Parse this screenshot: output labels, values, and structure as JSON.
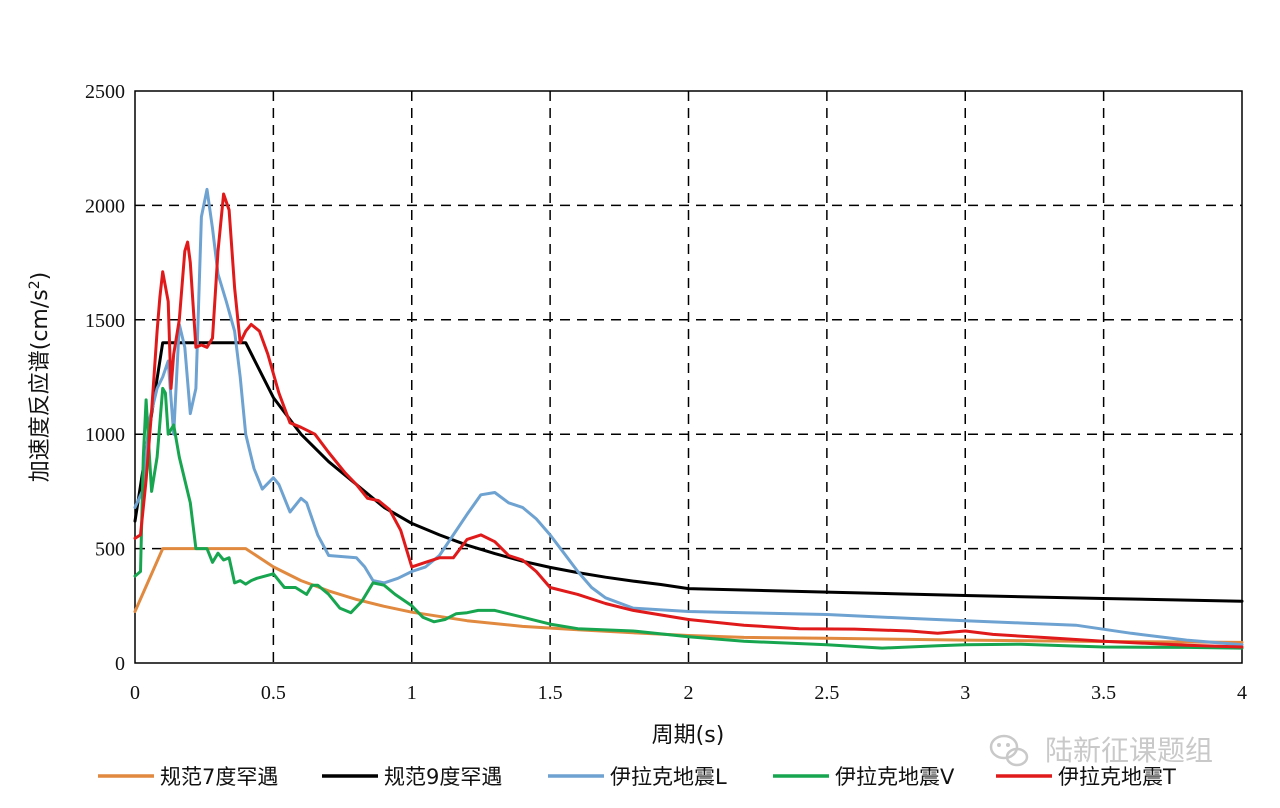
{
  "chart_data": {
    "type": "line",
    "title": "",
    "xlabel": "周期(s)",
    "ylabel_main": "加速度反应谱(cm/s",
    "ylabel_sup": "2",
    "ylabel_end": ")",
    "xlim": [
      0,
      4
    ],
    "ylim": [
      0,
      2500
    ],
    "x_ticks": [
      "0",
      "0.5",
      "1",
      "1.5",
      "2",
      "2.5",
      "3",
      "3.5",
      "4"
    ],
    "y_ticks": [
      "0",
      "500",
      "1000",
      "1500",
      "2000",
      "2500"
    ],
    "grid": "dashed",
    "legend_position": "bottom",
    "series": [
      {
        "name": "规范7度罕遇",
        "color": "#e0893f",
        "points": [
          [
            0,
            225
          ],
          [
            0.1,
            500
          ],
          [
            0.4,
            500
          ],
          [
            0.5,
            420
          ],
          [
            0.6,
            360
          ],
          [
            0.7,
            315
          ],
          [
            0.8,
            278
          ],
          [
            0.9,
            248
          ],
          [
            1.0,
            222
          ],
          [
            1.2,
            185
          ],
          [
            1.4,
            160
          ],
          [
            1.6,
            145
          ],
          [
            1.8,
            132
          ],
          [
            2.0,
            120
          ],
          [
            2.2,
            112
          ],
          [
            2.5,
            108
          ],
          [
            3.0,
            100
          ],
          [
            3.5,
            94
          ],
          [
            4.0,
            90
          ]
        ]
      },
      {
        "name": "规范9度罕遇",
        "color": "#000000",
        "points": [
          [
            0,
            620
          ],
          [
            0.1,
            1400
          ],
          [
            0.4,
            1400
          ],
          [
            0.5,
            1160
          ],
          [
            0.6,
            1000
          ],
          [
            0.7,
            880
          ],
          [
            0.8,
            780
          ],
          [
            0.9,
            680
          ],
          [
            1.0,
            610
          ],
          [
            1.1,
            560
          ],
          [
            1.2,
            515
          ],
          [
            1.3,
            478
          ],
          [
            1.4,
            445
          ],
          [
            1.5,
            418
          ],
          [
            1.6,
            395
          ],
          [
            1.7,
            375
          ],
          [
            1.8,
            358
          ],
          [
            1.9,
            343
          ],
          [
            2.0,
            325
          ],
          [
            2.5,
            310
          ],
          [
            3.0,
            295
          ],
          [
            3.5,
            282
          ],
          [
            4.0,
            270
          ]
        ]
      },
      {
        "name": "伊拉克地震L",
        "color": "#6ea2d1",
        "points": [
          [
            0,
            680
          ],
          [
            0.03,
            760
          ],
          [
            0.05,
            1050
          ],
          [
            0.08,
            1200
          ],
          [
            0.1,
            1250
          ],
          [
            0.12,
            1320
          ],
          [
            0.14,
            1000
          ],
          [
            0.16,
            1480
          ],
          [
            0.18,
            1380
          ],
          [
            0.2,
            1090
          ],
          [
            0.22,
            1200
          ],
          [
            0.24,
            1950
          ],
          [
            0.26,
            2070
          ],
          [
            0.28,
            1900
          ],
          [
            0.3,
            1700
          ],
          [
            0.33,
            1580
          ],
          [
            0.36,
            1450
          ],
          [
            0.38,
            1250
          ],
          [
            0.4,
            1000
          ],
          [
            0.43,
            850
          ],
          [
            0.46,
            760
          ],
          [
            0.5,
            810
          ],
          [
            0.52,
            780
          ],
          [
            0.56,
            660
          ],
          [
            0.6,
            720
          ],
          [
            0.62,
            700
          ],
          [
            0.66,
            560
          ],
          [
            0.7,
            470
          ],
          [
            0.75,
            465
          ],
          [
            0.8,
            460
          ],
          [
            0.83,
            420
          ],
          [
            0.86,
            360
          ],
          [
            0.9,
            350
          ],
          [
            0.95,
            370
          ],
          [
            1.0,
            400
          ],
          [
            1.05,
            420
          ],
          [
            1.1,
            470
          ],
          [
            1.15,
            560
          ],
          [
            1.2,
            650
          ],
          [
            1.25,
            735
          ],
          [
            1.3,
            745
          ],
          [
            1.35,
            700
          ],
          [
            1.4,
            680
          ],
          [
            1.45,
            630
          ],
          [
            1.5,
            560
          ],
          [
            1.55,
            480
          ],
          [
            1.6,
            400
          ],
          [
            1.65,
            330
          ],
          [
            1.7,
            285
          ],
          [
            1.8,
            240
          ],
          [
            2.0,
            225
          ],
          [
            2.2,
            220
          ],
          [
            2.5,
            212
          ],
          [
            2.8,
            195
          ],
          [
            3.0,
            185
          ],
          [
            3.2,
            175
          ],
          [
            3.4,
            165
          ],
          [
            3.6,
            130
          ],
          [
            3.8,
            100
          ],
          [
            4.0,
            80
          ]
        ]
      },
      {
        "name": "伊拉克地震V",
        "color": "#17a550",
        "points": [
          [
            0,
            380
          ],
          [
            0.02,
            400
          ],
          [
            0.03,
            900
          ],
          [
            0.04,
            1150
          ],
          [
            0.05,
            950
          ],
          [
            0.06,
            750
          ],
          [
            0.08,
            900
          ],
          [
            0.1,
            1200
          ],
          [
            0.11,
            1180
          ],
          [
            0.12,
            1000
          ],
          [
            0.14,
            1040
          ],
          [
            0.16,
            900
          ],
          [
            0.18,
            800
          ],
          [
            0.2,
            700
          ],
          [
            0.22,
            500
          ],
          [
            0.24,
            500
          ],
          [
            0.26,
            500
          ],
          [
            0.28,
            440
          ],
          [
            0.3,
            480
          ],
          [
            0.32,
            450
          ],
          [
            0.34,
            460
          ],
          [
            0.36,
            350
          ],
          [
            0.38,
            360
          ],
          [
            0.4,
            345
          ],
          [
            0.42,
            360
          ],
          [
            0.44,
            370
          ],
          [
            0.5,
            390
          ],
          [
            0.54,
            330
          ],
          [
            0.58,
            330
          ],
          [
            0.62,
            300
          ],
          [
            0.64,
            340
          ],
          [
            0.66,
            340
          ],
          [
            0.7,
            300
          ],
          [
            0.74,
            240
          ],
          [
            0.78,
            220
          ],
          [
            0.82,
            270
          ],
          [
            0.86,
            350
          ],
          [
            0.9,
            340
          ],
          [
            0.94,
            300
          ],
          [
            1.0,
            250
          ],
          [
            1.04,
            200
          ],
          [
            1.08,
            180
          ],
          [
            1.12,
            190
          ],
          [
            1.16,
            215
          ],
          [
            1.2,
            220
          ],
          [
            1.24,
            230
          ],
          [
            1.3,
            230
          ],
          [
            1.4,
            200
          ],
          [
            1.5,
            170
          ],
          [
            1.6,
            150
          ],
          [
            1.8,
            140
          ],
          [
            2.0,
            115
          ],
          [
            2.2,
            95
          ],
          [
            2.5,
            80
          ],
          [
            2.7,
            65
          ],
          [
            2.9,
            75
          ],
          [
            3.0,
            80
          ],
          [
            3.2,
            82
          ],
          [
            3.5,
            70
          ],
          [
            3.8,
            68
          ],
          [
            4.0,
            65
          ]
        ]
      },
      {
        "name": "伊拉克地震T",
        "color": "#e01a1a",
        "points": [
          [
            0,
            545
          ],
          [
            0.02,
            560
          ],
          [
            0.04,
            800
          ],
          [
            0.06,
            1100
          ],
          [
            0.08,
            1450
          ],
          [
            0.09,
            1600
          ],
          [
            0.1,
            1710
          ],
          [
            0.12,
            1580
          ],
          [
            0.13,
            1200
          ],
          [
            0.14,
            1350
          ],
          [
            0.16,
            1500
          ],
          [
            0.18,
            1800
          ],
          [
            0.19,
            1840
          ],
          [
            0.2,
            1750
          ],
          [
            0.22,
            1380
          ],
          [
            0.24,
            1390
          ],
          [
            0.26,
            1380
          ],
          [
            0.28,
            1420
          ],
          [
            0.3,
            1800
          ],
          [
            0.32,
            2050
          ],
          [
            0.34,
            1980
          ],
          [
            0.36,
            1640
          ],
          [
            0.38,
            1400
          ],
          [
            0.4,
            1450
          ],
          [
            0.42,
            1480
          ],
          [
            0.45,
            1450
          ],
          [
            0.48,
            1350
          ],
          [
            0.52,
            1180
          ],
          [
            0.56,
            1050
          ],
          [
            0.6,
            1030
          ],
          [
            0.65,
            1000
          ],
          [
            0.7,
            920
          ],
          [
            0.76,
            830
          ],
          [
            0.8,
            780
          ],
          [
            0.84,
            720
          ],
          [
            0.88,
            710
          ],
          [
            0.92,
            670
          ],
          [
            0.96,
            580
          ],
          [
            1.0,
            420
          ],
          [
            1.05,
            440
          ],
          [
            1.1,
            460
          ],
          [
            1.15,
            460
          ],
          [
            1.2,
            540
          ],
          [
            1.25,
            560
          ],
          [
            1.3,
            530
          ],
          [
            1.35,
            470
          ],
          [
            1.4,
            450
          ],
          [
            1.45,
            400
          ],
          [
            1.5,
            330
          ],
          [
            1.6,
            300
          ],
          [
            1.7,
            260
          ],
          [
            1.8,
            230
          ],
          [
            2.0,
            190
          ],
          [
            2.2,
            165
          ],
          [
            2.4,
            150
          ],
          [
            2.6,
            148
          ],
          [
            2.8,
            140
          ],
          [
            2.9,
            130
          ],
          [
            3.0,
            140
          ],
          [
            3.1,
            125
          ],
          [
            3.3,
            110
          ],
          [
            3.5,
            95
          ],
          [
            3.8,
            78
          ],
          [
            4.0,
            70
          ]
        ]
      }
    ]
  },
  "watermark": {
    "text": "陆新征课题组",
    "icon": "wechat-icon"
  }
}
